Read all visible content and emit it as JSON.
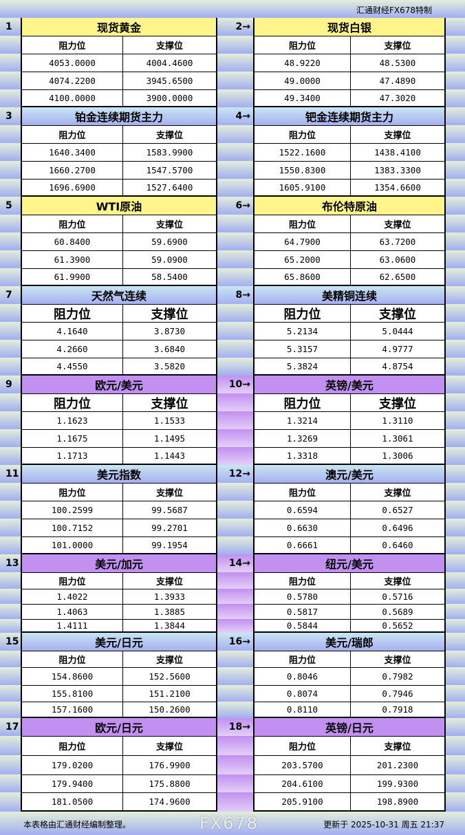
{
  "header": {
    "brand": "汇通财经FX678特制"
  },
  "labels": {
    "resistance": "阻力位",
    "support": "支撑位"
  },
  "colors": {
    "yellow": "#fff58a",
    "blue": "#a6b0f0",
    "purple": "#c290f0"
  },
  "sections": [
    {
      "num": "1",
      "title": "现货黄金",
      "theme": "yellow",
      "rows": [
        [
          "4053.0000",
          "4004.4600"
        ],
        [
          "4074.2200",
          "3945.6500"
        ],
        [
          "4100.0000",
          "3900.0000"
        ]
      ]
    },
    {
      "num": "2→",
      "title": "现货白银",
      "theme": "yellow",
      "rows": [
        [
          "48.9220",
          "48.5300"
        ],
        [
          "49.0000",
          "47.4890"
        ],
        [
          "49.3400",
          "47.3020"
        ]
      ]
    },
    {
      "num": "3",
      "title": "铂金连续期货主力",
      "theme": "blue",
      "rows": [
        [
          "1640.3400",
          "1583.9900"
        ],
        [
          "1660.2700",
          "1547.5700"
        ],
        [
          "1696.6900",
          "1527.6400"
        ]
      ]
    },
    {
      "num": "4→",
      "title": "钯金连续期货主力",
      "theme": "blue",
      "rows": [
        [
          "1522.1600",
          "1438.4100"
        ],
        [
          "1550.8300",
          "1383.3300"
        ],
        [
          "1605.9100",
          "1354.6600"
        ]
      ]
    },
    {
      "num": "5",
      "title": "WTI原油",
      "theme": "yellow",
      "rows": [
        [
          "60.8400",
          "59.6900"
        ],
        [
          "61.3900",
          "59.0900"
        ],
        [
          "61.9900",
          "58.5400"
        ]
      ]
    },
    {
      "num": "6→",
      "title": "布伦特原油",
      "theme": "yellow",
      "rows": [
        [
          "64.7900",
          "63.7200"
        ],
        [
          "65.2000",
          "63.0600"
        ],
        [
          "65.8600",
          "62.6500"
        ]
      ]
    },
    {
      "num": "7",
      "title": "天然气连续",
      "theme": "blue",
      "rows": [
        [
          "4.1640",
          "3.8730"
        ],
        [
          "4.2660",
          "3.6840"
        ],
        [
          "4.4550",
          "3.5820"
        ]
      ]
    },
    {
      "num": "8→",
      "title": "美精铜连续",
      "theme": "blue",
      "rows": [
        [
          "5.2134",
          "5.0444"
        ],
        [
          "5.3157",
          "4.9777"
        ],
        [
          "5.3824",
          "4.8754"
        ]
      ]
    },
    {
      "num": "9",
      "title": "欧元/美元",
      "theme": "purple",
      "rows": [
        [
          "1.1623",
          "1.1533"
        ],
        [
          "1.1675",
          "1.1495"
        ],
        [
          "1.1713",
          "1.1443"
        ]
      ]
    },
    {
      "num": "10→",
      "title": "英镑/美元",
      "theme": "purple",
      "rows": [
        [
          "1.3214",
          "1.3110"
        ],
        [
          "1.3269",
          "1.3061"
        ],
        [
          "1.3318",
          "1.3006"
        ]
      ]
    },
    {
      "num": "11",
      "title": "美元指数",
      "theme": "blue",
      "rows": [
        [
          "100.2599",
          "99.5687"
        ],
        [
          "100.7152",
          "99.2701"
        ],
        [
          "101.0000",
          "99.1954"
        ]
      ]
    },
    {
      "num": "12→",
      "title": "澳元/美元",
      "theme": "blue",
      "rows": [
        [
          "0.6594",
          "0.6527"
        ],
        [
          "0.6630",
          "0.6496"
        ],
        [
          "0.6661",
          "0.6460"
        ]
      ]
    },
    {
      "num": "13",
      "title": "美元/加元",
      "theme": "purple",
      "rows": [
        [
          "1.4022",
          "1.3933"
        ],
        [
          "1.4063",
          "1.3885"
        ],
        [
          "1.4111",
          "1.3844"
        ]
      ]
    },
    {
      "num": "14→",
      "title": "纽元/美元",
      "theme": "purple",
      "rows": [
        [
          "0.5780",
          "0.5716"
        ],
        [
          "0.5817",
          "0.5689"
        ],
        [
          "0.5844",
          "0.5652"
        ]
      ]
    },
    {
      "num": "15",
      "title": "美元/日元",
      "theme": "blue",
      "rows": [
        [
          "154.8600",
          "152.5600"
        ],
        [
          "155.8100",
          "151.2100"
        ],
        [
          "157.1600",
          "150.2600"
        ]
      ]
    },
    {
      "num": "16→",
      "title": "美元/瑞郎",
      "theme": "blue",
      "rows": [
        [
          "0.8046",
          "0.7982"
        ],
        [
          "0.8074",
          "0.7946"
        ],
        [
          "0.8110",
          "0.7918"
        ]
      ]
    },
    {
      "num": "17",
      "title": "欧元/日元",
      "theme": "purple",
      "rows": [
        [
          "179.0200",
          "176.9900"
        ],
        [
          "179.9400",
          "175.8800"
        ],
        [
          "181.0500",
          "174.9600"
        ]
      ]
    },
    {
      "num": "18→",
      "title": "英镑/日元",
      "theme": "purple",
      "rows": [
        [
          "203.5700",
          "201.2300"
        ],
        [
          "204.6100",
          "199.9300"
        ],
        [
          "205.9100",
          "198.8900"
        ]
      ]
    }
  ],
  "footer": {
    "note": "本表格由汇通财经编制整理。",
    "updated": "更新于 2025-10-31 周五 21:37"
  },
  "watermark": "FX678"
}
